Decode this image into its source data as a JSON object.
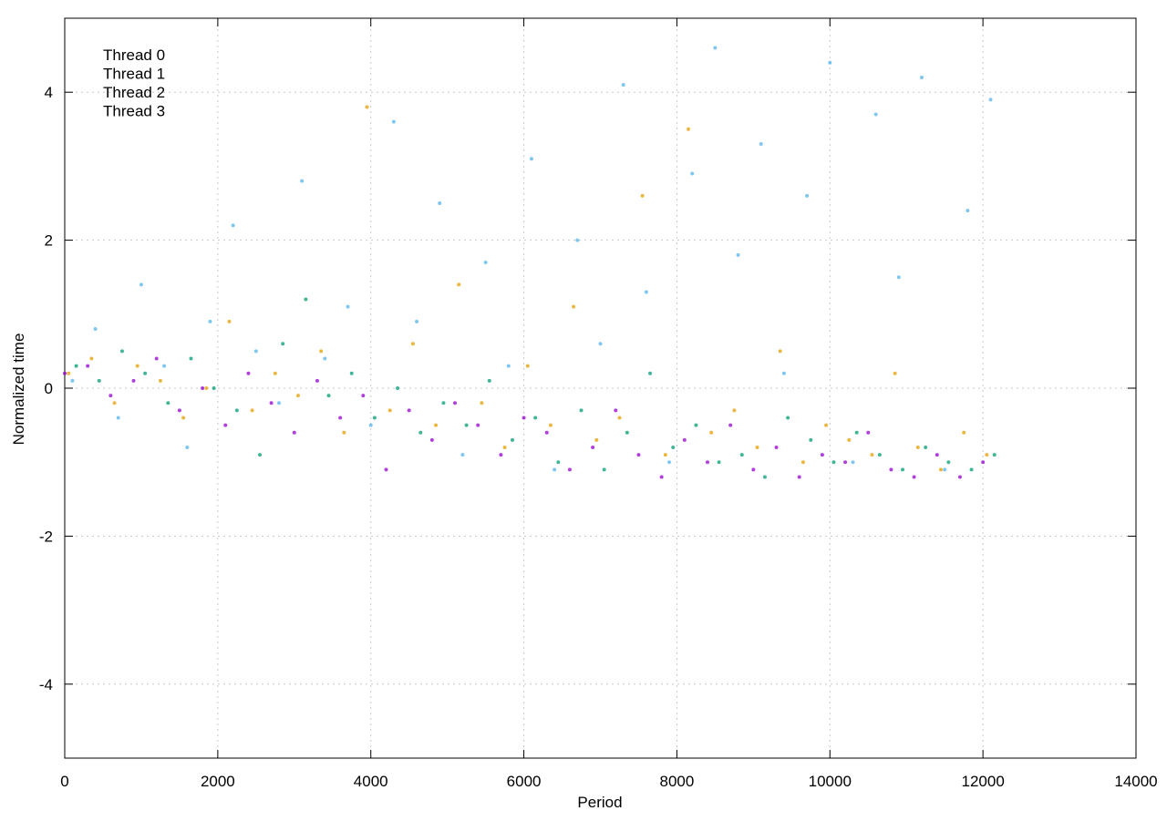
{
  "chart_data": {
    "type": "scatter",
    "xlabel": "Period",
    "ylabel": "Normalized time",
    "xlim": [
      0,
      14000
    ],
    "xticks": [
      0,
      2000,
      4000,
      6000,
      8000,
      10000,
      12000,
      14000
    ],
    "ylim": [
      -5,
      5
    ],
    "yticks": [
      -4,
      -2,
      0,
      2,
      4
    ],
    "grid": true,
    "legend": "top-left",
    "series": [
      {
        "name": "Thread 0",
        "color": "#9400d3",
        "x": [
          0,
          300,
          600,
          900,
          1200,
          1500,
          1800,
          2100,
          2400,
          2700,
          3000,
          3300,
          3600,
          3900,
          4200,
          4500,
          4800,
          5100,
          5400,
          5700,
          6000,
          6300,
          6600,
          6900,
          7200,
          7500,
          7800,
          8100,
          8400,
          8700,
          9000,
          9300,
          9600,
          9900,
          10200,
          10500,
          10800,
          11100,
          11400,
          11700,
          12000
        ],
        "values": [
          0.2,
          0.3,
          -0.1,
          0.1,
          0.4,
          -0.3,
          0.0,
          -0.5,
          0.2,
          -0.2,
          -0.6,
          0.1,
          -0.4,
          -0.1,
          -1.1,
          -0.3,
          -0.7,
          -0.2,
          -0.5,
          -0.9,
          -0.4,
          -0.6,
          -1.1,
          -0.8,
          -0.3,
          -0.9,
          -1.2,
          -0.7,
          -1.0,
          -0.5,
          -1.1,
          -0.8,
          -1.2,
          -0.9,
          -1.0,
          -0.6,
          -1.1,
          -1.2,
          -0.9,
          -1.2,
          -1.0
        ]
      },
      {
        "name": "Thread 1",
        "color": "#009e73",
        "x": [
          150,
          450,
          750,
          1050,
          1350,
          1650,
          1950,
          2250,
          2550,
          2850,
          3150,
          3450,
          3750,
          4050,
          4350,
          4650,
          4950,
          5250,
          5550,
          5850,
          6150,
          6450,
          6750,
          7050,
          7350,
          7650,
          7950,
          8250,
          8550,
          8850,
          9150,
          9450,
          9750,
          10050,
          10350,
          10650,
          10950,
          11250,
          11550,
          11850,
          12150
        ],
        "values": [
          0.3,
          0.1,
          0.5,
          0.2,
          -0.2,
          0.4,
          0.0,
          -0.3,
          -0.9,
          0.6,
          1.2,
          -0.1,
          0.2,
          -0.4,
          0.0,
          -0.6,
          -0.2,
          -0.5,
          0.1,
          -0.7,
          -0.4,
          -1.0,
          -0.3,
          -1.1,
          -0.6,
          0.2,
          -0.8,
          -0.5,
          -1.0,
          -0.9,
          -1.2,
          -0.4,
          -0.7,
          -1.0,
          -0.6,
          -0.9,
          -1.1,
          -0.8,
          -1.0,
          -1.1,
          -0.9
        ]
      },
      {
        "name": "Thread 2",
        "color": "#56b4e9",
        "x": [
          100,
          400,
          700,
          1000,
          1300,
          1600,
          1900,
          2200,
          2500,
          2800,
          3100,
          3400,
          3700,
          4000,
          4300,
          4600,
          4900,
          5200,
          5500,
          5800,
          6100,
          6400,
          6700,
          7000,
          7300,
          7600,
          7900,
          8200,
          8500,
          8800,
          9100,
          9400,
          9700,
          10000,
          10300,
          10600,
          10900,
          11200,
          11500,
          11800,
          12100
        ],
        "values": [
          0.1,
          0.8,
          -0.4,
          1.4,
          0.3,
          -0.8,
          0.9,
          2.2,
          0.5,
          -0.2,
          2.8,
          0.4,
          1.1,
          -0.5,
          3.6,
          0.9,
          2.5,
          -0.9,
          1.7,
          0.3,
          3.1,
          -1.1,
          2.0,
          0.6,
          4.1,
          1.3,
          -1.0,
          2.9,
          4.6,
          1.8,
          3.3,
          0.2,
          2.6,
          4.4,
          -1.0,
          3.7,
          1.5,
          4.2,
          -1.1,
          2.4,
          3.9
        ]
      },
      {
        "name": "Thread 3",
        "color": "#e69f00",
        "x": [
          50,
          350,
          650,
          950,
          1250,
          1550,
          1850,
          2150,
          2450,
          2750,
          3050,
          3350,
          3650,
          3950,
          4250,
          4550,
          4850,
          5150,
          5450,
          5750,
          6050,
          6350,
          6650,
          6950,
          7250,
          7550,
          7850,
          8150,
          8450,
          8750,
          9050,
          9350,
          9650,
          9950,
          10250,
          10550,
          10850,
          11150,
          11450,
          11750,
          12050
        ],
        "values": [
          0.2,
          0.4,
          -0.2,
          0.3,
          0.1,
          -0.4,
          0.0,
          0.9,
          -0.3,
          0.2,
          -0.1,
          0.5,
          -0.6,
          3.8,
          -0.3,
          0.6,
          -0.5,
          1.4,
          -0.2,
          -0.8,
          0.3,
          -0.5,
          1.1,
          -0.7,
          -0.4,
          2.6,
          -0.9,
          3.5,
          -0.6,
          -0.3,
          -0.8,
          0.5,
          -1.0,
          -0.5,
          -0.7,
          -0.9,
          0.2,
          -0.8,
          -1.1,
          -0.6,
          -0.9
        ]
      }
    ]
  }
}
